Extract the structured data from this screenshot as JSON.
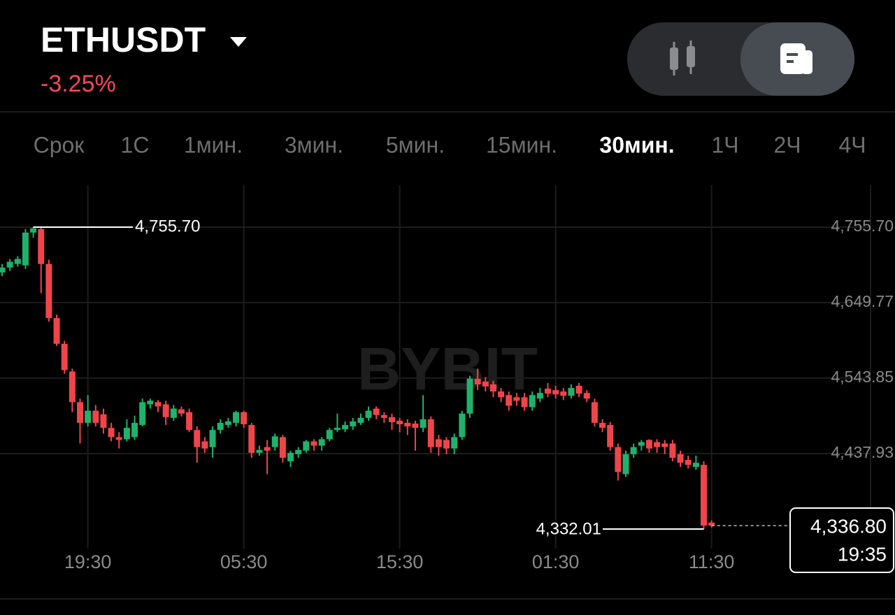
{
  "header": {
    "symbol": "ETHUSDT",
    "change": "-3.25%"
  },
  "timeframes": {
    "items": [
      "Срок",
      "1С",
      "1мин.",
      "3мин.",
      "5мин.",
      "15мин.",
      "30мин.",
      "1Ч",
      "2Ч",
      "4Ч"
    ],
    "selected_index": 6
  },
  "chart_data": {
    "type": "candlestick",
    "watermark": "BYBIT",
    "categories": [
      null,
      null,
      null,
      null,
      null,
      null,
      null,
      null,
      null,
      null,
      null,
      "19:30",
      null,
      null,
      null,
      null,
      null,
      null,
      null,
      null,
      null,
      null,
      null,
      null,
      null,
      null,
      null,
      null,
      null,
      null,
      null,
      "05:30",
      null,
      null,
      null,
      null,
      null,
      null,
      null,
      null,
      null,
      null,
      null,
      null,
      null,
      null,
      null,
      null,
      null,
      null,
      null,
      "15:30",
      null,
      null,
      null,
      null,
      null,
      null,
      null,
      null,
      null,
      null,
      null,
      null,
      null,
      null,
      null,
      null,
      null,
      null,
      null,
      "01:30",
      null,
      null,
      null,
      null,
      null,
      null,
      null,
      null,
      null,
      null,
      null,
      null,
      null,
      null,
      null,
      null,
      null,
      null,
      null,
      "11:30"
    ],
    "open": [
      4692,
      4699,
      4704,
      4702,
      4748,
      4753,
      4704,
      4628,
      4592,
      4553,
      4510,
      4481,
      4498,
      4493,
      4474,
      4461,
      4458,
      4461,
      4478,
      4507,
      4510,
      4507,
      4488,
      4500,
      4496,
      4471,
      4455,
      4447,
      4471,
      4478,
      4481,
      4496,
      4478,
      4439,
      4447,
      4447,
      4461,
      4427,
      4437,
      4442,
      4455,
      4449,
      4458,
      4471,
      4472,
      4476,
      4481,
      4488,
      4501,
      4492,
      4489,
      4484,
      4481,
      4480,
      4474,
      4486,
      4458,
      4457,
      4445,
      4461,
      4494,
      4543,
      4539,
      4535,
      4525,
      4520,
      4517,
      4517,
      4503,
      4515,
      4529,
      4527,
      4525,
      4519,
      4533,
      4523,
      4510,
      4481,
      4478,
      4447,
      4409,
      4437,
      4449,
      4457,
      4454,
      4452,
      4452,
      4437,
      4429,
      4419,
      4422,
      4341
    ],
    "high": [
      4704,
      4711,
      4715,
      4753,
      4755.7,
      4755.7,
      4710,
      4633,
      4596,
      4557,
      4515,
      4520,
      4506,
      4501,
      4481,
      4468,
      4486,
      4491,
      4515,
      4515,
      4513,
      4512,
      4506,
      4504,
      4501,
      4476,
      4461,
      4476,
      4486,
      4488,
      4498,
      4498,
      4481,
      4449,
      4457,
      4466,
      4464,
      4442,
      4447,
      4457,
      4458,
      4461,
      4474,
      4494,
      4483,
      4488,
      4494,
      4504,
      4504,
      4496,
      4494,
      4488,
      4486,
      4484,
      4520,
      4490,
      4464,
      4461,
      4466,
      4498,
      4547,
      4557,
      4545,
      4540,
      4530,
      4525,
      4523,
      4523,
      4525,
      4530,
      4537,
      4533,
      4530,
      4535,
      4537,
      4527,
      4515,
      4486,
      4482,
      4452,
      4442,
      4452,
      4457,
      4458,
      4458,
      4457,
      4457,
      4442,
      4435,
      4435,
      4427,
      4344
    ],
    "low": [
      4687,
      4694,
      4700,
      4697,
      4741,
      4663,
      4623,
      4589,
      4550,
      4496,
      4452,
      4476,
      4476,
      4466,
      4455,
      4445,
      4455,
      4457,
      4476,
      4501,
      4496,
      4478,
      4484,
      4490,
      4468,
      4425,
      4439,
      4432,
      4466,
      4474,
      4476,
      4474,
      4432,
      4435,
      4409,
      4442,
      4425,
      4419,
      4432,
      4439,
      4442,
      4442,
      4455,
      4468,
      4468,
      4471,
      4478,
      4484,
      4486,
      4481,
      4471,
      4468,
      4464,
      4442,
      4468,
      4439,
      4435,
      4437,
      4437,
      4457,
      4488,
      4527,
      4525,
      4517,
      4510,
      4498,
      4505,
      4498,
      4498,
      4510,
      4517,
      4515,
      4513,
      4515,
      4517,
      4510,
      4476,
      4468,
      4442,
      4400,
      4405,
      4432,
      4442,
      4439,
      4439,
      4437,
      4427,
      4419,
      4417,
      4415,
      4332.01,
      4334
    ],
    "close": [
      4699,
      4707,
      4711,
      4748,
      4754,
      4704,
      4628,
      4592,
      4555,
      4510,
      4481,
      4498,
      4481,
      4474,
      4461,
      4457,
      4474,
      4481,
      4510,
      4512,
      4504,
      4489,
      4501,
      4494,
      4471,
      4447,
      4445,
      4471,
      4481,
      4483,
      4496,
      4479,
      4439,
      4443,
      4442,
      4462,
      4432,
      4439,
      4443,
      4455,
      4449,
      4458,
      4471,
      4474,
      4478,
      4483,
      4488,
      4498,
      4492,
      4488,
      4482,
      4479,
      4476,
      4474,
      4486,
      4447,
      4447,
      4445,
      4461,
      4494,
      4543,
      4535,
      4532,
      4525,
      4517,
      4505,
      4512,
      4503,
      4520,
      4523,
      4522,
      4521,
      4519,
      4530,
      4522,
      4515,
      4481,
      4474,
      4447,
      4412,
      4437,
      4447,
      4454,
      4445,
      4447,
      4447,
      4432,
      4425,
      4422,
      4425,
      4336.8,
      4336.8
    ],
    "up_color": "#20b26c",
    "down_color": "#ef454a",
    "ylim": [
      4304.5,
      4814.5
    ],
    "yticks": [
      {
        "value": 4755.7,
        "label": "4,755.70"
      },
      {
        "value": 4649.77,
        "label": "4,649.77"
      },
      {
        "value": 4543.85,
        "label": "4,543.85"
      },
      {
        "value": 4437.93,
        "label": "4,437.93"
      }
    ],
    "grid": true,
    "high_marker": {
      "value": 4755.7,
      "label": "4,755.70"
    },
    "low_marker": {
      "value": 4332.01,
      "label": "4,332.01"
    },
    "last_price": {
      "value": 4336.8,
      "label": "4,336.80"
    },
    "countdown": "19:35"
  }
}
